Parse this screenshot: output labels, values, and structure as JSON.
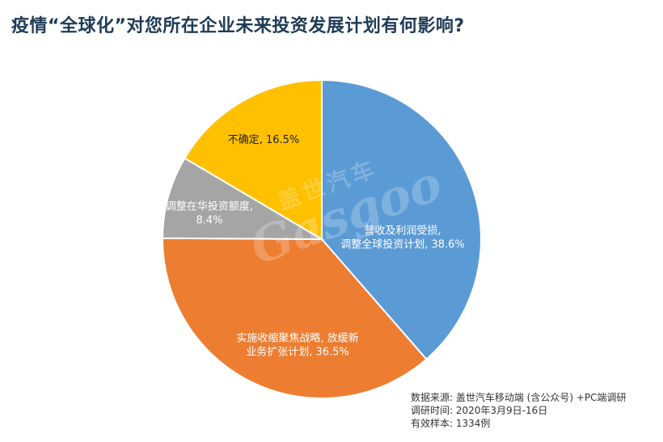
{
  "title": "疫情“全球化”对您所在企业未来投资发展计划有何影响?",
  "chart_data": {
    "type": "pie",
    "slices": [
      {
        "label_lines": [
          "营收及利润受损,",
          "调整全球投资计划, 38.6%"
        ],
        "value": 38.6,
        "color": "#5b9bd5"
      },
      {
        "label_lines": [
          "实施收缩聚焦战略, 放缓新",
          "业务扩张计划, 36.5%"
        ],
        "value": 36.5,
        "color": "#ed7d31"
      },
      {
        "label_lines": [
          "调整在华投资额度,",
          "8.4%"
        ],
        "value": 8.4,
        "color": "#a5a5a5"
      },
      {
        "label_lines": [
          "不确定, 16.5%"
        ],
        "value": 16.5,
        "color": "#ffc000"
      }
    ]
  },
  "watermark": {
    "cn": "盖世汽车",
    "en": "Gasgoo"
  },
  "source": {
    "line1": "数据来源: 盖世汽车移动端 (含公众号) +PC端调研",
    "line2": "调研时间: 2020年3月9日-16日",
    "line3": "有效样本: 1334例"
  }
}
